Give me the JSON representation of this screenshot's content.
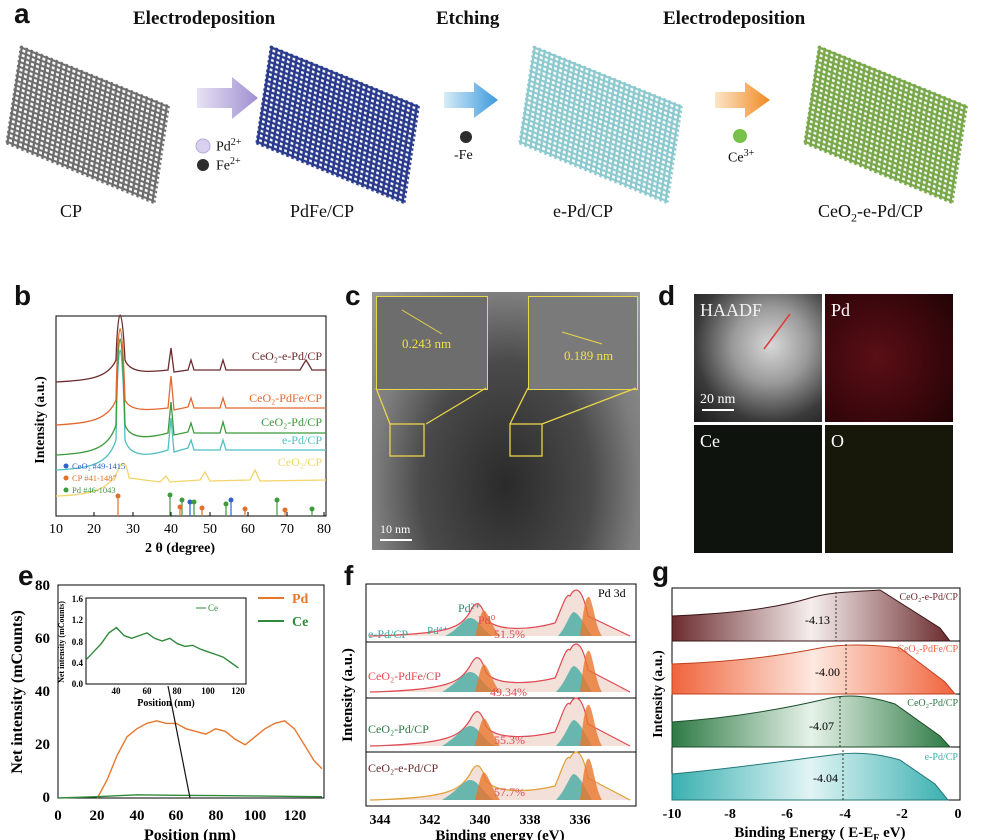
{
  "panel_a": {
    "letter": "a",
    "steps": [
      "Electrodeposition",
      "Etching",
      "Electrodeposition"
    ],
    "species_1": [
      "Pd",
      "2+",
      "Fe",
      "2+"
    ],
    "species_2": [
      "-Fe"
    ],
    "species_3": [
      "Ce",
      "3+"
    ],
    "captions": [
      "CP",
      "PdFe/CP",
      "e-Pd/CP",
      "CeO",
      "2",
      "-e-Pd/CP"
    ],
    "colors": {
      "cp": "#6d6d6d",
      "pdfe": "#2a3a8c",
      "epd": "#8cc9cf",
      "ceo2": "#79a84a"
    }
  },
  "panel_b": {
    "letter": "b",
    "ylabel": "Intensity (a.u.)",
    "xlabel": "2 θ (degree)",
    "ref_legend": [
      {
        "text": "CeO₂ #49-1415",
        "color": "#2e63c9"
      },
      {
        "text": "CP   #41-1487",
        "color": "#e0702b"
      },
      {
        "text": "Pd   #46-1043",
        "color": "#3d9a3d"
      }
    ],
    "curve_labels": [
      "CeO₂-e-Pd/CP",
      "CeO₂-PdFe/CP",
      "CeO₂-Pd/CP",
      "e-Pd/CP",
      "CeO₂/CP"
    ],
    "ticks": [
      "10",
      "20",
      "30",
      "40",
      "50",
      "60",
      "70",
      "80"
    ]
  },
  "panel_c": {
    "letter": "c",
    "d1": "0.243 nm",
    "d2": "0.189 nm",
    "scale": "10 nm"
  },
  "panel_d": {
    "letter": "d",
    "labels": [
      "HAADF",
      "Pd",
      "Ce",
      "O"
    ],
    "scale": "20 nm"
  },
  "panel_e": {
    "letter": "e",
    "ylabel": "Net intensity (mCounts)",
    "xlabel": "Position (nm)",
    "legend": [
      "Pd",
      "Ce"
    ],
    "inset_ylabel": "Net intensity (mCounts)",
    "inset_xlabel": "Position (nm)",
    "inset_legend": "Ce",
    "yticks": [
      "0",
      "20",
      "40",
      "60",
      "80"
    ],
    "xticks": [
      "0",
      "20",
      "40",
      "60",
      "80",
      "100",
      "120"
    ],
    "inset_yticks": [
      "0.0",
      "0.4",
      "0.8",
      "1.2",
      "1.6"
    ],
    "inset_xticks": [
      "40",
      "60",
      "80",
      "100",
      "120"
    ]
  },
  "panel_f": {
    "letter": "f",
    "ylabel": "Intensity (a.u.)",
    "xlabel": "Binding energy (eV)",
    "title_pd3d": "Pd 3d",
    "species": [
      "Pd²⁺",
      "Pd⁴⁺",
      "Pd⁰"
    ],
    "rows": [
      {
        "label": "e-Pd/CP",
        "pct": "51.5%"
      },
      {
        "label": "CeO₂-PdFe/CP",
        "pct": "49.34%"
      },
      {
        "label": "CeO₂-Pd/CP",
        "pct": "55.3%"
      },
      {
        "label": "CeO₂-e-Pd/CP",
        "pct": "57.7%"
      }
    ],
    "xticks": [
      "344",
      "342",
      "340",
      "338",
      "336"
    ]
  },
  "panel_g": {
    "letter": "g",
    "ylabel": "Intensity (a.u.)",
    "xlabel": "Binding Energy ( E-E",
    "xlabel_sub": "F",
    "xlabel_end": " eV)",
    "rows": [
      {
        "label": "CeO₂-e-Pd/CP",
        "value": "-4.13",
        "color": "#6b2b2e"
      },
      {
        "label": "CeO₂-PdFe/CP",
        "value": "-4.00",
        "color": "#f0643c"
      },
      {
        "label": "CeO₂-Pd/CP",
        "value": "-4.07",
        "color": "#2e7a45"
      },
      {
        "label": "e-Pd/CP",
        "value": "-4.04",
        "color": "#3ab0b0"
      }
    ],
    "xticks": [
      "-10",
      "-8",
      "-6",
      "-4",
      "-2",
      "0"
    ]
  },
  "chart_data": [
    {
      "type": "line",
      "panel": "e",
      "xlabel": "Position (nm)",
      "ylabel": "Net intensity (mCounts)",
      "xlim": [
        0,
        135
      ],
      "ylim": [
        0,
        80
      ],
      "series": [
        {
          "name": "Pd",
          "color": "#e8772e",
          "x": [
            20,
            25,
            30,
            35,
            40,
            45,
            50,
            55,
            60,
            65,
            70,
            75,
            80,
            85,
            90,
            95,
            100,
            105,
            110,
            115,
            120,
            125,
            130,
            134
          ],
          "y": [
            0,
            7,
            16,
            23,
            26,
            28,
            29,
            28,
            28,
            26,
            25,
            24,
            26,
            25,
            22,
            20,
            23,
            26,
            28,
            29,
            26,
            20,
            14,
            11
          ]
        },
        {
          "name": "Ce",
          "color": "#2f8a3c",
          "x": [
            0,
            20,
            40,
            60,
            80,
            100,
            120,
            134
          ],
          "y": [
            0,
            0.5,
            1.2,
            1.0,
            0.9,
            0.8,
            0.6,
            0.5
          ]
        }
      ]
    },
    {
      "type": "line",
      "panel": "e-inset",
      "xlabel": "Position (nm)",
      "ylabel": "Net intensity (mCounts)",
      "xlim": [
        30,
        135
      ],
      "ylim": [
        0,
        1.6
      ],
      "series": [
        {
          "name": "Ce",
          "color": "#2f8a3c",
          "x": [
            30,
            35,
            40,
            45,
            50,
            55,
            60,
            65,
            70,
            75,
            80,
            85,
            90,
            95,
            100,
            105,
            110,
            115,
            120,
            125,
            130
          ],
          "y": [
            0.45,
            0.6,
            0.75,
            0.95,
            1.05,
            0.9,
            0.85,
            0.9,
            0.95,
            0.85,
            0.8,
            0.85,
            0.75,
            0.7,
            0.72,
            0.65,
            0.6,
            0.55,
            0.5,
            0.4,
            0.3
          ]
        }
      ]
    }
  ]
}
